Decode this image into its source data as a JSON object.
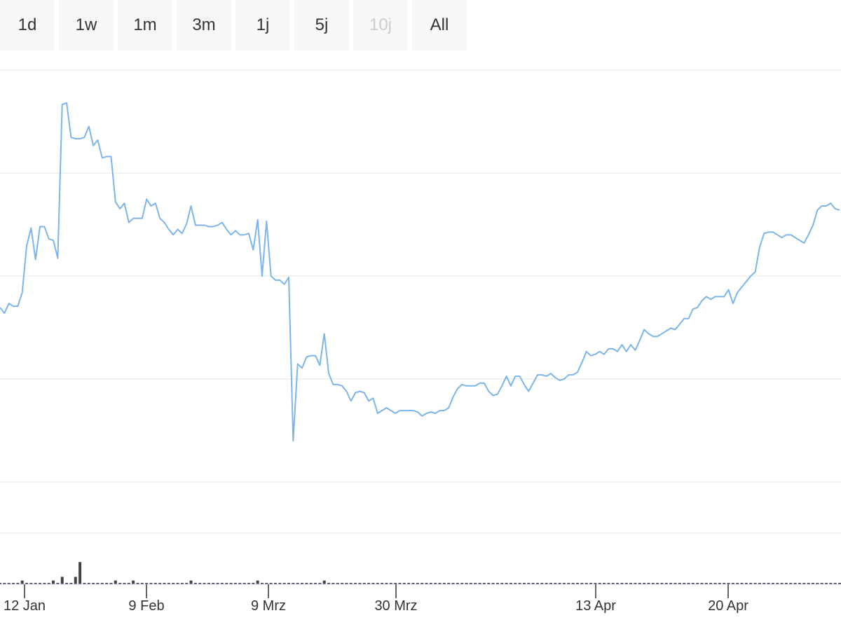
{
  "range_selector": {
    "buttons": [
      {
        "label": "1d",
        "enabled": true
      },
      {
        "label": "1w",
        "enabled": true
      },
      {
        "label": "1m",
        "enabled": true
      },
      {
        "label": "3m",
        "enabled": true
      },
      {
        "label": "1j",
        "enabled": true
      },
      {
        "label": "5j",
        "enabled": true
      },
      {
        "label": "10j",
        "enabled": false
      },
      {
        "label": "All",
        "enabled": true
      }
    ]
  },
  "colors": {
    "line": "#7cb5ec",
    "volume": "#434348",
    "grid": "#e6e6e6",
    "axis": "#ccd6eb",
    "tick_label": "#333333"
  },
  "chart_data": {
    "type": "line",
    "title": "",
    "xlabel": "",
    "ylabel": "",
    "grid": true,
    "x_ticks": [
      "12 Jan",
      "9 Feb",
      "9 Mrz",
      "30 Mrz",
      "13 Apr",
      "20 Apr"
    ],
    "series": [
      {
        "type": "line",
        "values": [
          5.47,
          5.43,
          5.5,
          5.48,
          5.48,
          5.58,
          5.92,
          6.05,
          5.82,
          6.06,
          6.06,
          5.97,
          5.96,
          5.83,
          6.95,
          6.96,
          6.71,
          6.7,
          6.7,
          6.71,
          6.79,
          6.65,
          6.69,
          6.56,
          6.57,
          6.57,
          6.24,
          6.19,
          6.23,
          6.09,
          6.12,
          6.12,
          6.12,
          6.26,
          6.21,
          6.23,
          6.12,
          6.09,
          6.04,
          6.0,
          6.04,
          6.01,
          6.08,
          6.21,
          6.07,
          6.07,
          6.07,
          6.06,
          6.06,
          6.07,
          6.09,
          6.04,
          6.0,
          6.03,
          6.0,
          6.0,
          6.01,
          5.89,
          6.11,
          5.7,
          6.1,
          5.7,
          5.67,
          5.67,
          5.64,
          5.69,
          4.5,
          5.06,
          5.03,
          5.11,
          5.12,
          5.12,
          5.05,
          5.28,
          4.99,
          4.91,
          4.91,
          4.9,
          4.86,
          4.79,
          4.85,
          4.86,
          4.85,
          4.79,
          4.81,
          4.7,
          4.72,
          4.74,
          4.72,
          4.7,
          4.72,
          4.72,
          4.72,
          4.72,
          4.71,
          4.68,
          4.7,
          4.71,
          4.7,
          4.72,
          4.72,
          4.74,
          4.82,
          4.88,
          4.91,
          4.9,
          4.9,
          4.9,
          4.92,
          4.92,
          4.86,
          4.83,
          4.84,
          4.9,
          4.97,
          4.9,
          4.97,
          4.97,
          4.91,
          4.86,
          4.92,
          4.98,
          4.98,
          4.97,
          4.99,
          4.96,
          4.94,
          4.95,
          4.98,
          4.98,
          5.0,
          5.07,
          5.15,
          5.12,
          5.13,
          5.15,
          5.13,
          5.17,
          5.17,
          5.15,
          5.2,
          5.15,
          5.2,
          5.16,
          5.23,
          5.31,
          5.28,
          5.26,
          5.26,
          5.28,
          5.3,
          5.32,
          5.31,
          5.35,
          5.39,
          5.39,
          5.46,
          5.47,
          5.52,
          5.55,
          5.53,
          5.55,
          5.55,
          5.55,
          5.6,
          5.5,
          5.58,
          5.62,
          5.66,
          5.7,
          5.73,
          5.91,
          6.01,
          6.02,
          6.02,
          6.0,
          5.98,
          6.0,
          6.0,
          5.98,
          5.96,
          5.94,
          6.0,
          6.07,
          6.18,
          6.21,
          6.21,
          6.23,
          6.19,
          6.18
        ]
      },
      {
        "type": "column",
        "name": "volume",
        "values": [
          0,
          0,
          0,
          0,
          0,
          1,
          0,
          0,
          0,
          0,
          0,
          0,
          1,
          0,
          2,
          0,
          0,
          2,
          6,
          0,
          0,
          0,
          0,
          0,
          0,
          0,
          1,
          0,
          0,
          0,
          1,
          0,
          0,
          0,
          0,
          0,
          0,
          0,
          0,
          0,
          0,
          0,
          0,
          1,
          0,
          0,
          0,
          0,
          0,
          0,
          0,
          0,
          0,
          0,
          0,
          0,
          0,
          0,
          1,
          0,
          0,
          0,
          0,
          0,
          0,
          0,
          0,
          0,
          0,
          0,
          0,
          0,
          0,
          1,
          0,
          0,
          0,
          0,
          0,
          0,
          0,
          0,
          0,
          0,
          0,
          0,
          0,
          0,
          0,
          0,
          0,
          0,
          0,
          0,
          0,
          0,
          0,
          0,
          0,
          0,
          0,
          0,
          0,
          0,
          0,
          0,
          0,
          0,
          0,
          0,
          0,
          0,
          0,
          0,
          0,
          0,
          0,
          0,
          0,
          0,
          0,
          0,
          0,
          0,
          0,
          0,
          0,
          0,
          0,
          0,
          0,
          0,
          0,
          0,
          0,
          0,
          0,
          0,
          0,
          0,
          0,
          0,
          0,
          0,
          0,
          0,
          0,
          0,
          0,
          0,
          0,
          0,
          0,
          0,
          0,
          0,
          0,
          0,
          0,
          0,
          0,
          0,
          0,
          0,
          0,
          0,
          0,
          0,
          0,
          0,
          0,
          0,
          0,
          0,
          0,
          0,
          0,
          0,
          0,
          0,
          0,
          0,
          0,
          0,
          0,
          0,
          0,
          0,
          0,
          0,
          0,
          0,
          0,
          0,
          0
        ]
      }
    ]
  }
}
